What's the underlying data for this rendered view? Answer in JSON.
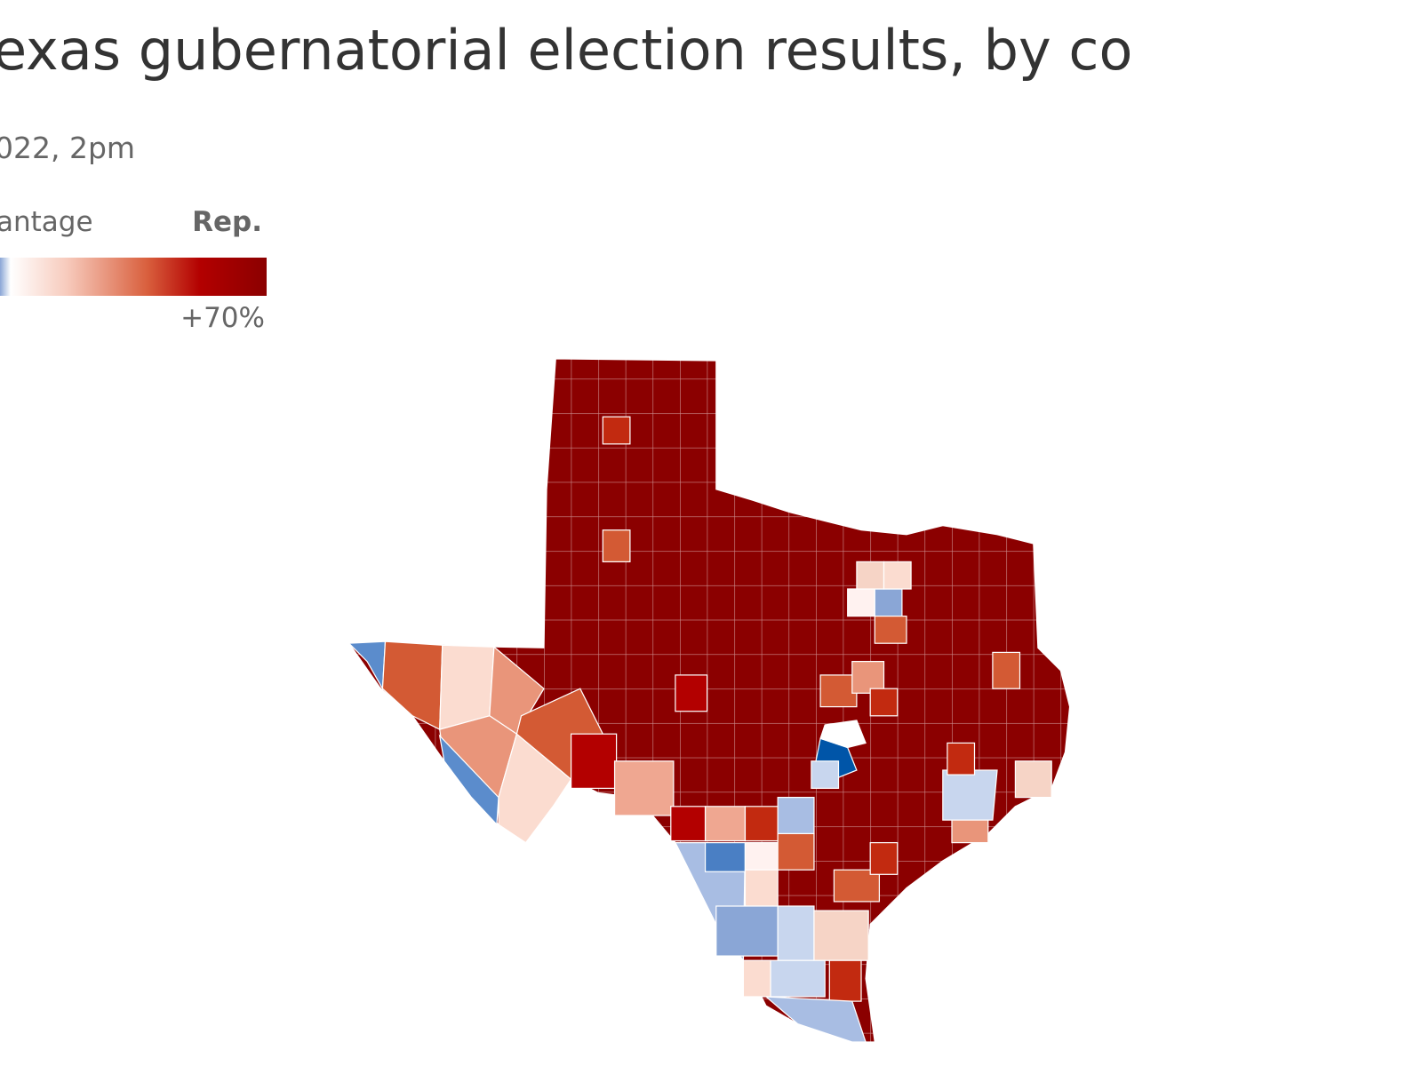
{
  "header": {
    "title": "exas gubernatorial election results, by co",
    "subtitle": "022, 2pm"
  },
  "legend": {
    "left_label": "antage",
    "right_label": "Rep.",
    "max_label": "+70%"
  }
}
